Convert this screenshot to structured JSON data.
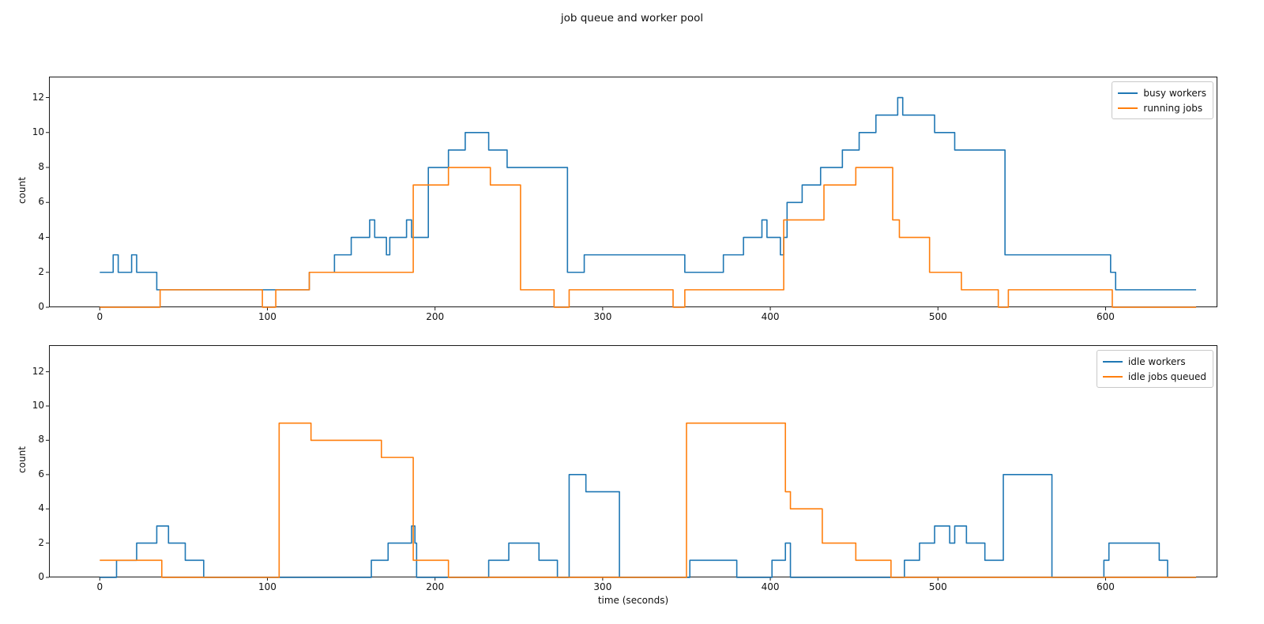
{
  "title": "job queue and worker pool",
  "text_color": "#111111",
  "spine_color": "#1a1a1a",
  "chart_data": [
    {
      "type": "line",
      "step": "post",
      "ylabel": "count",
      "xlabel": "",
      "x_ticks": [
        0,
        100,
        200,
        300,
        400,
        500,
        600
      ],
      "y_ticks": [
        0,
        2,
        4,
        6,
        8,
        10,
        12
      ],
      "xlim": [
        -30.3,
        666.7
      ],
      "ylim": [
        0,
        13.2
      ],
      "grid": false,
      "legend_position": "upper-right",
      "series": [
        {
          "name": "busy workers",
          "color": "#1f77b4",
          "points": [
            [
              0,
              2
            ],
            [
              8,
              3
            ],
            [
              11,
              2
            ],
            [
              19,
              3
            ],
            [
              22,
              2
            ],
            [
              34,
              1
            ],
            [
              125,
              2
            ],
            [
              140,
              3
            ],
            [
              150,
              4
            ],
            [
              161,
              5
            ],
            [
              164,
              4
            ],
            [
              171,
              3
            ],
            [
              173,
              4
            ],
            [
              183,
              5
            ],
            [
              186,
              4
            ],
            [
              196,
              8
            ],
            [
              208,
              9
            ],
            [
              218,
              10
            ],
            [
              232,
              9
            ],
            [
              243,
              8
            ],
            [
              279,
              2
            ],
            [
              289,
              3
            ],
            [
              349,
              2
            ],
            [
              372,
              3
            ],
            [
              384,
              4
            ],
            [
              395,
              5
            ],
            [
              398,
              4
            ],
            [
              406,
              3
            ],
            [
              408,
              4
            ],
            [
              410,
              6
            ],
            [
              419,
              7
            ],
            [
              430,
              8
            ],
            [
              443,
              9
            ],
            [
              453,
              10
            ],
            [
              463,
              11
            ],
            [
              476,
              12
            ],
            [
              479,
              11
            ],
            [
              498,
              10
            ],
            [
              510,
              9
            ],
            [
              540,
              3
            ],
            [
              603,
              2
            ],
            [
              606,
              1
            ],
            [
              654,
              1
            ]
          ]
        },
        {
          "name": "running jobs",
          "color": "#ff7f0e",
          "points": [
            [
              0,
              0
            ],
            [
              36,
              1
            ],
            [
              97,
              0
            ],
            [
              105,
              1
            ],
            [
              125,
              2
            ],
            [
              187,
              7
            ],
            [
              208,
              8
            ],
            [
              233,
              7
            ],
            [
              251,
              1
            ],
            [
              271,
              0
            ],
            [
              280,
              1
            ],
            [
              342,
              0
            ],
            [
              349,
              1
            ],
            [
              408,
              5
            ],
            [
              432,
              7
            ],
            [
              451,
              8
            ],
            [
              473,
              5
            ],
            [
              477,
              4
            ],
            [
              495,
              2
            ],
            [
              514,
              1
            ],
            [
              536,
              0
            ],
            [
              542,
              1
            ],
            [
              604,
              0
            ],
            [
              654,
              0
            ]
          ]
        }
      ]
    },
    {
      "type": "line",
      "step": "post",
      "ylabel": "count",
      "xlabel": "time (seconds)",
      "x_ticks": [
        0,
        100,
        200,
        300,
        400,
        500,
        600
      ],
      "y_ticks": [
        0,
        2,
        4,
        6,
        8,
        10,
        12
      ],
      "xlim": [
        -30.3,
        666.7
      ],
      "ylim": [
        0,
        13.55
      ],
      "grid": false,
      "legend_position": "upper-right",
      "series": [
        {
          "name": "idle workers",
          "color": "#1f77b4",
          "points": [
            [
              0,
              0
            ],
            [
              10,
              1
            ],
            [
              22,
              2
            ],
            [
              34,
              3
            ],
            [
              41,
              2
            ],
            [
              51,
              1
            ],
            [
              62,
              0
            ],
            [
              162,
              1
            ],
            [
              172,
              2
            ],
            [
              186,
              3
            ],
            [
              188,
              2
            ],
            [
              189,
              0
            ],
            [
              232,
              1
            ],
            [
              244,
              2
            ],
            [
              262,
              1
            ],
            [
              273,
              0
            ],
            [
              280,
              6
            ],
            [
              290,
              5
            ],
            [
              310,
              0
            ],
            [
              352,
              1
            ],
            [
              380,
              0
            ],
            [
              401,
              1
            ],
            [
              409,
              2
            ],
            [
              412,
              0
            ],
            [
              480,
              1
            ],
            [
              489,
              2
            ],
            [
              498,
              3
            ],
            [
              507,
              2
            ],
            [
              510,
              3
            ],
            [
              517,
              2
            ],
            [
              528,
              1
            ],
            [
              539,
              6
            ],
            [
              568,
              0
            ],
            [
              599,
              1
            ],
            [
              602,
              2
            ],
            [
              632,
              1
            ],
            [
              637,
              0
            ],
            [
              654,
              0
            ]
          ]
        },
        {
          "name": "idle jobs queued",
          "color": "#ff7f0e",
          "points": [
            [
              0,
              1
            ],
            [
              37,
              0
            ],
            [
              107,
              9
            ],
            [
              126,
              8
            ],
            [
              168,
              7
            ],
            [
              187,
              1
            ],
            [
              208,
              0
            ],
            [
              350,
              9
            ],
            [
              409,
              5
            ],
            [
              412,
              4
            ],
            [
              431,
              2
            ],
            [
              451,
              1
            ],
            [
              472,
              0
            ],
            [
              654,
              0
            ]
          ]
        }
      ]
    }
  ]
}
